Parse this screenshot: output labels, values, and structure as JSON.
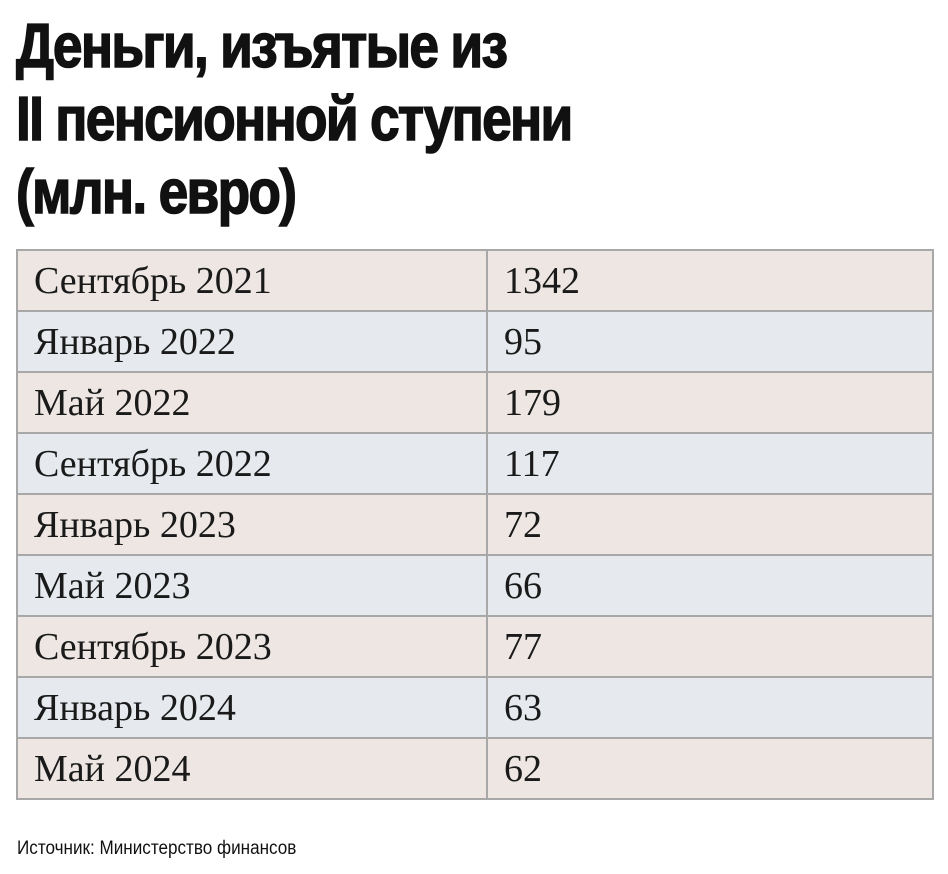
{
  "header": {
    "title_lines": [
      "Деньги, изъятые из",
      "II пенсионной ступени",
      "(млн. евро)"
    ]
  },
  "table": {
    "rows": [
      [
        "Сентябрь 2021",
        1342
      ],
      [
        "Январь 2022",
        95
      ],
      [
        "Май 2022",
        179
      ],
      [
        "Сентябрь 2022",
        117
      ],
      [
        "Январь 2023",
        72
      ],
      [
        "Май 2023",
        66
      ],
      [
        "Сентябрь 2023",
        77
      ],
      [
        "Январь 2024",
        63
      ],
      [
        "Май 2024",
        62
      ]
    ]
  },
  "footer": {
    "source": "Источник: Министерство финансов"
  }
}
